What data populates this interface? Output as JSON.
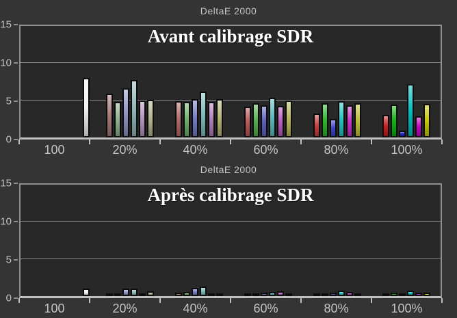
{
  "theme": {
    "page_bg": "#343434",
    "plot_bg": "#282828",
    "frame": "#8f8f8f",
    "axis": "#c0c0c0",
    "grid": "#8a8a8a",
    "muted_text": "#c4c4c4",
    "subtitle_color": "#ffffff",
    "bar_outline": "#0c0c0c",
    "white_bar": "#f2f2f2"
  },
  "chart_data": [
    {
      "type": "bar",
      "title": "DeltaE 2000",
      "subtitle": "Avant calibrage SDR",
      "ylim": [
        0,
        15
      ],
      "yticks": [
        0,
        5,
        10,
        15
      ],
      "grid": true,
      "legend": "none",
      "categories": [
        "100",
        "20%",
        "40%",
        "60%",
        "80%",
        "100%"
      ],
      "groups": [
        {
          "label": "100",
          "bars": [
            {
              "name": "white",
              "value": 8.0,
              "color": "#f2f2f2"
            }
          ]
        },
        {
          "label": "20%",
          "bars": [
            {
              "name": "red",
              "value": 5.9,
              "color": "#a87a7a"
            },
            {
              "name": "green",
              "value": 4.8,
              "color": "#8fb38c"
            },
            {
              "name": "blue",
              "value": 6.6,
              "color": "#8e94c4"
            },
            {
              "name": "cyan",
              "value": 7.7,
              "color": "#8fb6b6"
            },
            {
              "name": "magenta",
              "value": 5.0,
              "color": "#b295bb"
            },
            {
              "name": "yellow",
              "value": 5.1,
              "color": "#b5b58c"
            }
          ]
        },
        {
          "label": "40%",
          "bars": [
            {
              "name": "red",
              "value": 4.9,
              "color": "#b06a6a"
            },
            {
              "name": "green",
              "value": 4.8,
              "color": "#6fb06c"
            },
            {
              "name": "blue",
              "value": 5.2,
              "color": "#757bc4"
            },
            {
              "name": "cyan",
              "value": 6.2,
              "color": "#7cbaba"
            },
            {
              "name": "magenta",
              "value": 4.8,
              "color": "#b07eba"
            },
            {
              "name": "yellow",
              "value": 5.2,
              "color": "#b3b378"
            }
          ]
        },
        {
          "label": "60%",
          "bars": [
            {
              "name": "red",
              "value": 4.1,
              "color": "#ba5858"
            },
            {
              "name": "green",
              "value": 4.6,
              "color": "#53b04f"
            },
            {
              "name": "blue",
              "value": 4.3,
              "color": "#5a60c0"
            },
            {
              "name": "cyan",
              "value": 5.3,
              "color": "#57bcbc"
            },
            {
              "name": "magenta",
              "value": 4.2,
              "color": "#b85cbe"
            },
            {
              "name": "yellow",
              "value": 5.0,
              "color": "#b6b658"
            }
          ]
        },
        {
          "label": "80%",
          "bars": [
            {
              "name": "red",
              "value": 3.2,
              "color": "#c24040"
            },
            {
              "name": "green",
              "value": 4.6,
              "color": "#2fb32b"
            },
            {
              "name": "blue",
              "value": 2.5,
              "color": "#3c42c4"
            },
            {
              "name": "cyan",
              "value": 4.9,
              "color": "#2dc0c0"
            },
            {
              "name": "magenta",
              "value": 4.3,
              "color": "#c133c6"
            },
            {
              "name": "yellow",
              "value": 4.6,
              "color": "#bfbf38"
            }
          ]
        },
        {
          "label": "100%",
          "bars": [
            {
              "name": "red",
              "value": 3.0,
              "color": "#cc1c1c"
            },
            {
              "name": "green",
              "value": 4.4,
              "color": "#0ab50a"
            },
            {
              "name": "blue",
              "value": 0.9,
              "color": "#1c1ccc"
            },
            {
              "name": "cyan",
              "value": 7.2,
              "color": "#00bebe"
            },
            {
              "name": "magenta",
              "value": 2.9,
              "color": "#c400c4"
            },
            {
              "name": "yellow",
              "value": 4.5,
              "color": "#c6c600"
            }
          ]
        }
      ]
    },
    {
      "type": "bar",
      "title": "DeltaE 2000",
      "subtitle": "Après calibrage SDR",
      "ylim": [
        0,
        15
      ],
      "yticks": [
        0,
        5,
        10,
        15
      ],
      "grid": true,
      "legend": "none",
      "categories": [
        "100",
        "20%",
        "40%",
        "60%",
        "80%",
        "100%"
      ],
      "groups": [
        {
          "label": "100",
          "bars": [
            {
              "name": "white",
              "value": 1.0,
              "color": "#f2f2f2"
            }
          ]
        },
        {
          "label": "20%",
          "bars": [
            {
              "name": "red",
              "value": 0.35,
              "color": "#a87a7a"
            },
            {
              "name": "green",
              "value": 0.35,
              "color": "#8fb38c"
            },
            {
              "name": "blue",
              "value": 1.05,
              "color": "#8e94c4"
            },
            {
              "name": "cyan",
              "value": 1.0,
              "color": "#8fb6b6"
            },
            {
              "name": "magenta",
              "value": 0.3,
              "color": "#b295bb"
            },
            {
              "name": "yellow",
              "value": 0.6,
              "color": "#b5b58c"
            }
          ]
        },
        {
          "label": "40%",
          "bars": [
            {
              "name": "red",
              "value": 0.45,
              "color": "#b06a6a"
            },
            {
              "name": "green",
              "value": 0.55,
              "color": "#6fb06c"
            },
            {
              "name": "blue",
              "value": 1.1,
              "color": "#757bc4"
            },
            {
              "name": "cyan",
              "value": 1.25,
              "color": "#7cbaba"
            },
            {
              "name": "magenta",
              "value": 0.35,
              "color": "#b07eba"
            },
            {
              "name": "yellow",
              "value": 0.35,
              "color": "#b3b378"
            }
          ]
        },
        {
          "label": "60%",
          "bars": [
            {
              "name": "red",
              "value": 0.2,
              "color": "#ba5858"
            },
            {
              "name": "green",
              "value": 0.3,
              "color": "#53b04f"
            },
            {
              "name": "blue",
              "value": 0.5,
              "color": "#5a60c0"
            },
            {
              "name": "cyan",
              "value": 0.55,
              "color": "#57bcbc"
            },
            {
              "name": "magenta",
              "value": 0.65,
              "color": "#b85cbe"
            },
            {
              "name": "yellow",
              "value": 0.35,
              "color": "#b6b658"
            }
          ]
        },
        {
          "label": "80%",
          "bars": [
            {
              "name": "red",
              "value": 0.2,
              "color": "#c24040"
            },
            {
              "name": "green",
              "value": 0.3,
              "color": "#2fb32b"
            },
            {
              "name": "blue",
              "value": 0.5,
              "color": "#3c42c4"
            },
            {
              "name": "cyan",
              "value": 0.7,
              "color": "#2dc0c0"
            },
            {
              "name": "magenta",
              "value": 0.55,
              "color": "#c133c6"
            },
            {
              "name": "yellow",
              "value": 0.3,
              "color": "#bfbf38"
            }
          ]
        },
        {
          "label": "100%",
          "bars": [
            {
              "name": "red",
              "value": 0.2,
              "color": "#cc1c1c"
            },
            {
              "name": "green",
              "value": 0.45,
              "color": "#0ab50a"
            },
            {
              "name": "blue",
              "value": 0.4,
              "color": "#1c1ccc"
            },
            {
              "name": "cyan",
              "value": 0.7,
              "color": "#00bebe"
            },
            {
              "name": "magenta",
              "value": 0.5,
              "color": "#c400c4"
            },
            {
              "name": "yellow",
              "value": 0.5,
              "color": "#c6c600"
            }
          ]
        }
      ]
    }
  ]
}
